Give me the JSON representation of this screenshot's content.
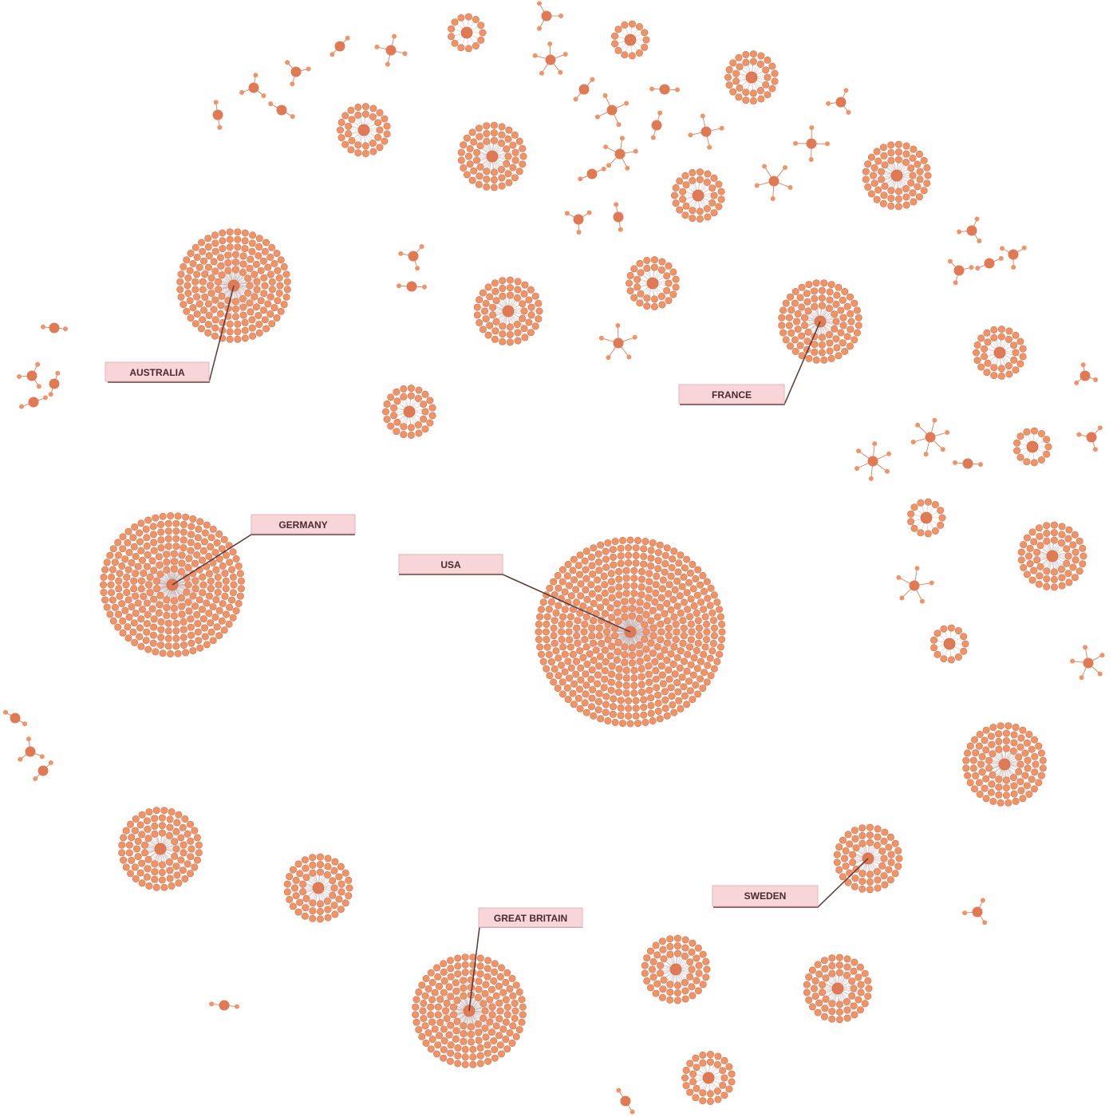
{
  "colors": {
    "background": "#ffffff",
    "node_fill": "#ef9469",
    "node_stroke": "#d4704a",
    "hub_fill": "#e07a55",
    "edge": "#c9b8b8",
    "label_fill": "#f7d5d8",
    "label_stroke": "#e6b5ba",
    "label_text": "#4a2b2b",
    "leader_line": "#5a3535"
  },
  "labels": {
    "australia": "AUSTRALIA",
    "france": "FRANCE",
    "germany": "GERMANY",
    "usa": "USA",
    "sweden": "SWEDEN",
    "great_britain": "GREAT BRITAIN"
  },
  "clusters": [
    {
      "id": "usa",
      "degree": 360,
      "label": "usa"
    },
    {
      "id": "germany",
      "degree": 220,
      "label": "germany"
    },
    {
      "id": "australia",
      "degree": 160,
      "label": "australia"
    },
    {
      "id": "great_britain",
      "degree": 140,
      "label": "great_britain"
    },
    {
      "id": "france",
      "degree": 90,
      "label": "france"
    },
    {
      "id": "sweden",
      "degree": 60,
      "label": "sweden"
    }
  ]
}
